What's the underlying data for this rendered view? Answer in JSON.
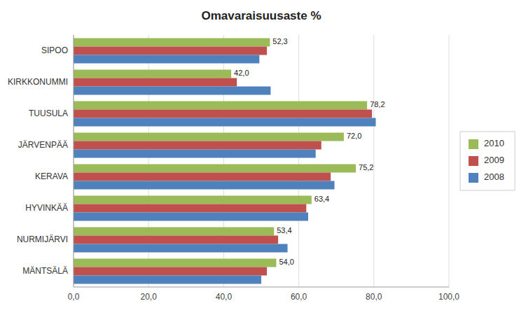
{
  "chart_data": {
    "type": "bar",
    "orientation": "horizontal",
    "title": "Omavaraisuusaste %",
    "categories": [
      "MÄNTSÄLÄ",
      "NURMIJÄRVI",
      "HYVINKÄÄ",
      "KERAVA",
      "JÄRVENPÄÄ",
      "TUUSULA",
      "KIRKKONUMMI",
      "SIPOO"
    ],
    "series": [
      {
        "name": "2010",
        "color": "#9BBB59",
        "values": [
          54.0,
          53.4,
          63.4,
          75.2,
          72.0,
          78.2,
          42.0,
          52.3
        ],
        "data_labels": true,
        "value_labels": [
          "54,0",
          "53,4",
          "63,4",
          "75,2",
          "72,0",
          "78,2",
          "42,0",
          "52,3"
        ]
      },
      {
        "name": "2009",
        "color": "#C0504D",
        "values": [
          51.5,
          54.5,
          62.0,
          68.5,
          66.0,
          79.5,
          43.5,
          51.5
        ]
      },
      {
        "name": "2008",
        "color": "#4F81BD",
        "values": [
          50.0,
          57.0,
          62.5,
          69.5,
          64.5,
          80.5,
          52.5,
          49.5
        ]
      }
    ],
    "xlim": [
      0,
      100
    ],
    "xticks": [
      {
        "value": 0,
        "label": "0,0"
      },
      {
        "value": 20,
        "label": "20,0"
      },
      {
        "value": 40,
        "label": "40,0"
      },
      {
        "value": 60,
        "label": "60,0"
      },
      {
        "value": 80,
        "label": "80,0"
      },
      {
        "value": 100,
        "label": "100,0"
      }
    ],
    "grid": true,
    "legend": "right"
  }
}
